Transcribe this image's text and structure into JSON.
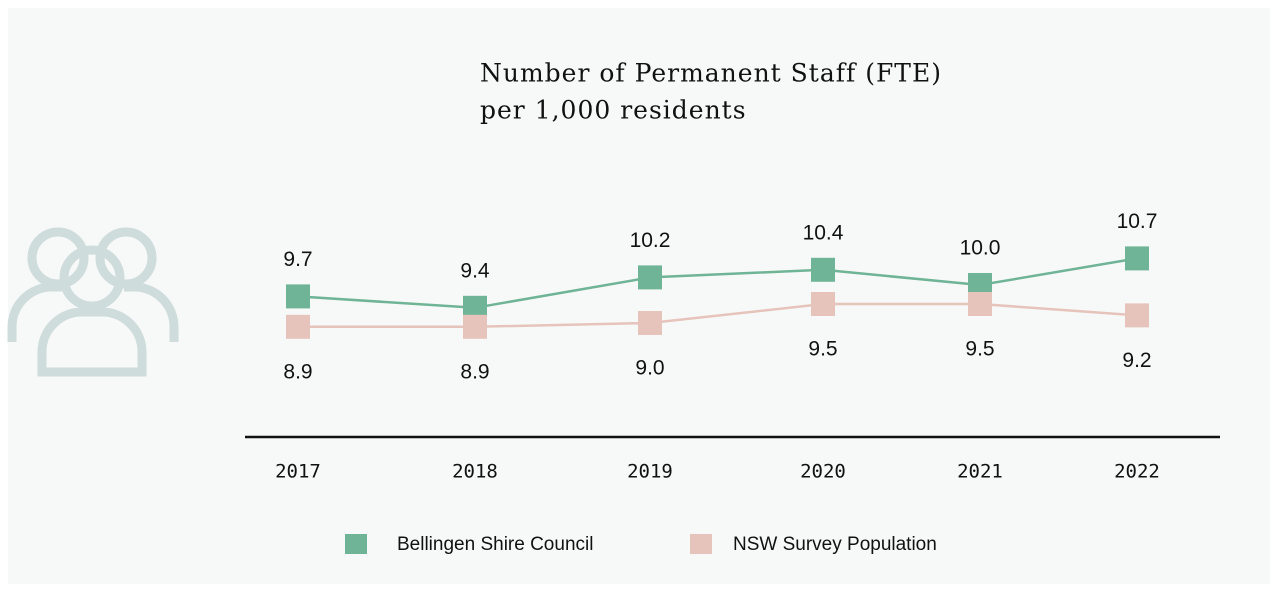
{
  "chart_data": {
    "type": "line",
    "title": "Number of Permanent Staff (FTE)",
    "subtitle": "per 1,000 residents",
    "categories": [
      "2017",
      "2018",
      "2019",
      "2020",
      "2021",
      "2022"
    ],
    "series": [
      {
        "name": "Bellingen Shire Council",
        "color": "#6fb497",
        "values": [
          9.7,
          9.4,
          10.2,
          10.4,
          10.0,
          10.7
        ],
        "value_labels": [
          "9.7",
          "9.4",
          "10.2",
          "10.4",
          "10.0",
          "10.7"
        ]
      },
      {
        "name": "NSW Survey Population",
        "color": "#e6c4bc",
        "values": [
          8.9,
          8.9,
          9.0,
          9.5,
          9.5,
          9.2
        ],
        "value_labels": [
          "8.9",
          "8.9",
          "9.0",
          "9.5",
          "9.5",
          "9.2"
        ]
      }
    ],
    "ylim": [
      6,
      12
    ]
  }
}
